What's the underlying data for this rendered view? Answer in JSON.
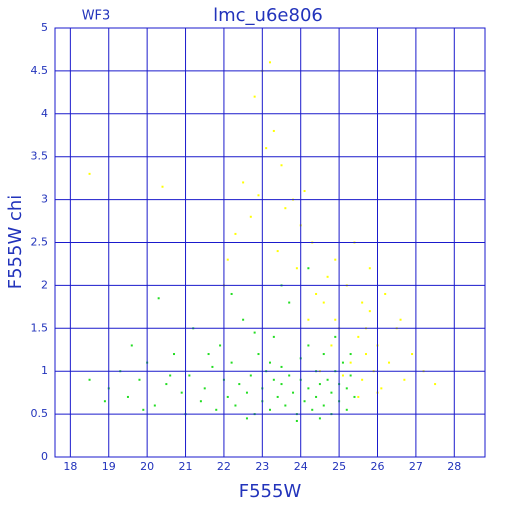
{
  "chart_data": {
    "type": "scatter",
    "title": "lmc_u6e806",
    "subtitle": "WF3",
    "x_label": "F555W",
    "y_label": "F555W  chi",
    "xlim": [
      17.6,
      28.8
    ],
    "ylim": [
      0,
      5
    ],
    "xticks": [
      18,
      19,
      20,
      21,
      22,
      23,
      24,
      25,
      26,
      27,
      28
    ],
    "yticks": [
      0,
      0.5,
      1,
      1.5,
      2,
      2.5,
      3,
      3.5,
      4,
      4.5,
      5
    ],
    "grid": true,
    "series": [
      {
        "color": "#ffff00",
        "x": [
          24.5,
          24.8,
          25.0,
          25.1,
          25.3,
          25.5,
          25.6,
          25.7,
          25.8,
          25.9,
          26.0,
          26.1,
          26.3,
          26.5,
          26.7,
          26.9,
          27.2,
          27.5,
          25.2,
          24.9,
          24.6,
          24.3,
          24.0,
          23.8,
          23.5,
          23.3,
          23.0,
          22.8,
          23.2,
          22.5,
          22.3,
          22.1,
          22.0,
          23.6,
          23.9,
          24.1,
          24.4,
          24.7,
          25.4,
          25.8,
          26.2,
          26.6,
          22.7,
          23.1,
          23.4,
          25.6,
          26.0,
          25.5,
          24.9,
          25.7,
          18.5,
          20.4,
          22.9,
          24.2
        ],
        "values": [
          1.0,
          1.3,
          1.5,
          0.95,
          1.1,
          1.4,
          0.9,
          1.2,
          1.7,
          1.0,
          1.3,
          0.8,
          1.1,
          1.5,
          0.9,
          1.2,
          1.0,
          0.85,
          2.0,
          2.3,
          1.8,
          2.5,
          2.7,
          3.0,
          3.4,
          3.8,
          4.5,
          4.2,
          4.6,
          3.2,
          2.6,
          2.3,
          2.0,
          2.9,
          2.2,
          3.1,
          1.9,
          2.1,
          2.5,
          2.2,
          1.9,
          1.6,
          2.8,
          3.6,
          2.4,
          1.8,
          0.75,
          0.7,
          1.6,
          1.5,
          3.3,
          3.15,
          3.05,
          1.6
        ]
      },
      {
        "color": "#22dd22",
        "x": [
          19.0,
          19.3,
          19.5,
          19.8,
          20.0,
          20.2,
          20.5,
          20.7,
          20.9,
          21.1,
          21.2,
          21.4,
          21.5,
          21.7,
          21.8,
          21.9,
          22.0,
          22.1,
          22.2,
          22.3,
          22.4,
          22.5,
          22.6,
          22.7,
          22.8,
          22.9,
          23.0,
          23.0,
          23.1,
          23.2,
          23.3,
          23.3,
          23.4,
          23.5,
          23.5,
          23.6,
          23.7,
          23.7,
          23.8,
          23.9,
          24.0,
          24.0,
          24.1,
          24.2,
          24.2,
          24.3,
          24.4,
          24.4,
          24.5,
          24.6,
          24.6,
          24.7,
          24.8,
          24.8,
          24.9,
          25.0,
          25.0,
          25.1,
          25.2,
          25.2,
          25.3,
          25.4,
          18.5,
          18.9,
          19.6,
          20.3,
          21.0,
          22.2,
          23.5,
          24.2,
          22.6,
          23.9,
          24.5,
          19.9,
          21.6,
          22.8,
          20.6,
          23.2,
          24.9,
          25.3
        ],
        "values": [
          0.8,
          1.0,
          0.7,
          0.9,
          1.1,
          0.6,
          0.85,
          1.2,
          0.75,
          0.95,
          1.5,
          0.65,
          0.8,
          1.05,
          0.55,
          1.3,
          0.9,
          0.7,
          1.1,
          0.6,
          0.85,
          1.6,
          0.75,
          0.95,
          0.5,
          1.2,
          0.8,
          0.65,
          1.0,
          0.55,
          0.9,
          1.4,
          0.7,
          0.85,
          1.05,
          0.6,
          0.95,
          1.8,
          0.75,
          0.5,
          0.9,
          1.15,
          0.65,
          0.8,
          1.3,
          0.55,
          1.0,
          0.7,
          0.85,
          0.6,
          1.2,
          0.9,
          0.5,
          0.75,
          1.0,
          0.65,
          0.85,
          1.1,
          0.55,
          0.8,
          0.95,
          0.7,
          0.9,
          0.65,
          1.3,
          1.85,
          0.5,
          1.9,
          2.0,
          2.2,
          0.45,
          0.42,
          0.45,
          0.55,
          1.2,
          1.45,
          0.95,
          1.1,
          1.4,
          1.2
        ]
      }
    ]
  }
}
